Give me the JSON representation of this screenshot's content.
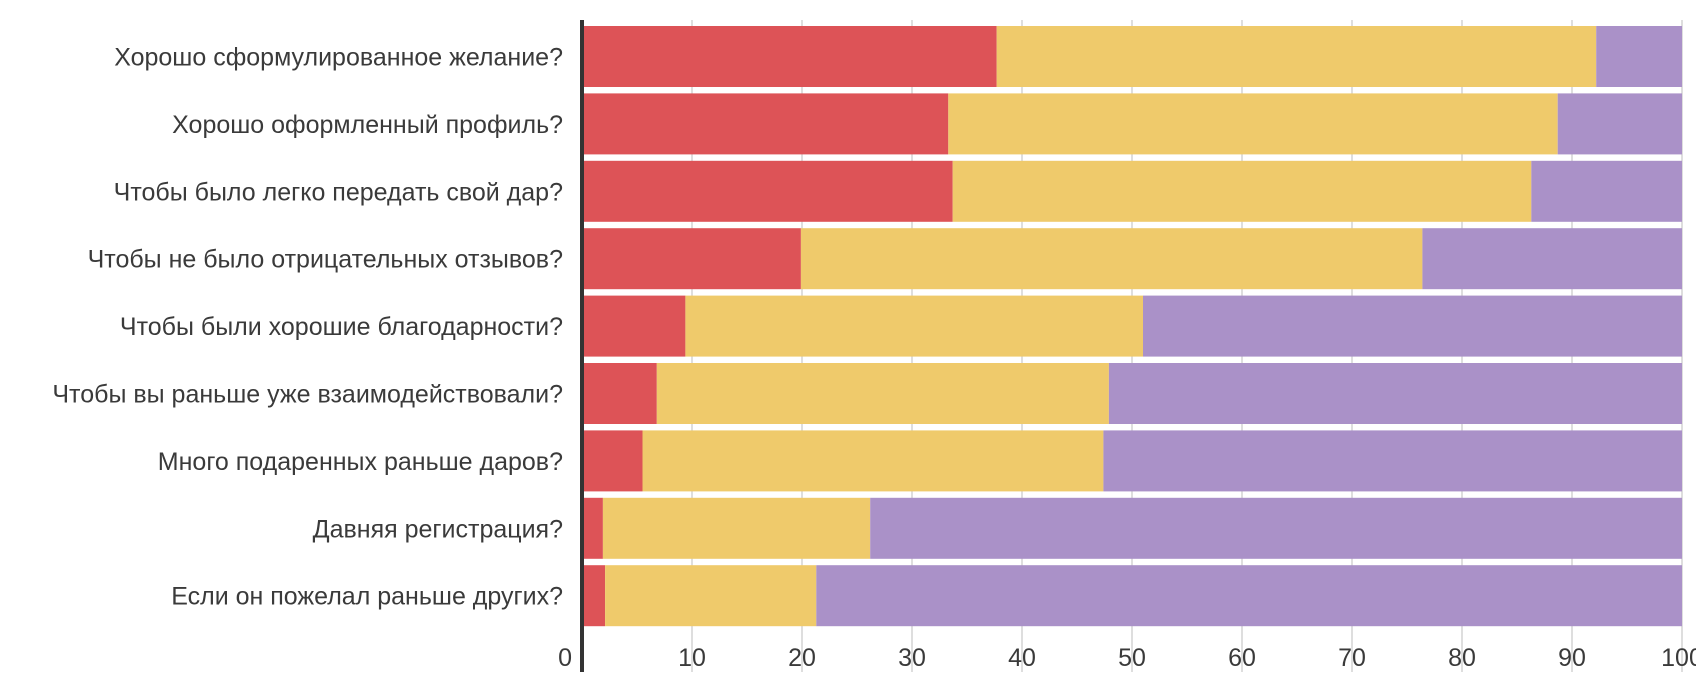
{
  "chart_data": {
    "type": "bar",
    "orientation": "horizontal",
    "stacked": true,
    "categories": [
      "Хорошо сформулированное желание?",
      "Хорошо оформленный профиль?",
      "Чтобы было легко передать свой дар?",
      "Чтобы не было отрицательных отзывов?",
      "Чтобы были хорошие благодарности?",
      "Чтобы вы раньше уже взаимодействовали?",
      "Много подаренных раньше даров?",
      "Давняя регистрация?",
      "Если он пожелал раньше других?"
    ],
    "series": [
      {
        "color": "#dd5357",
        "values": [
          37.7,
          33.3,
          33.7,
          19.9,
          9.4,
          6.8,
          5.5,
          1.9,
          2.1
        ]
      },
      {
        "color": "#efca6b",
        "values": [
          54.5,
          55.4,
          52.6,
          56.5,
          41.6,
          41.1,
          41.9,
          24.3,
          19.2
        ]
      },
      {
        "color": "#aa91c8",
        "values": [
          7.8,
          11.3,
          13.7,
          23.6,
          49.0,
          52.1,
          52.6,
          73.8,
          78.7
        ]
      }
    ],
    "xlim": [
      0,
      100
    ],
    "xticks": [
      "0",
      "10",
      "20",
      "30",
      "40",
      "50",
      "60",
      "70",
      "80",
      "90",
      "100"
    ],
    "grid": true,
    "legend": "none"
  },
  "colors": {
    "text": "#3a3a3a",
    "grid": "#c8c8c8",
    "axis": "#333333"
  }
}
